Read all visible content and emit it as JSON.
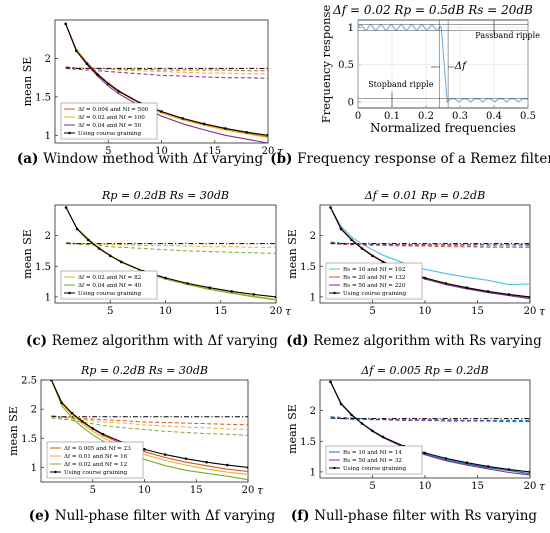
{
  "colors": {
    "purple": "#7e2f8e",
    "orange": "#d95319",
    "yellow": "#edb120",
    "blue": "#0072bd",
    "cyan": "#4dbeee",
    "green": "#77ac30",
    "black": "#000000",
    "remez": "#6ea8dc"
  },
  "captions": [
    {
      "letter": "(a)",
      "text": "Window method with Δf varying"
    },
    {
      "letter": "(b)",
      "text": "Frequency response of a Remez filter"
    },
    {
      "letter": "(c)",
      "text": "Remez algorithm with Δf varying"
    },
    {
      "letter": "(d)",
      "text": "Remez algorithm with Rs varying"
    },
    {
      "letter": "(e)",
      "text": "Null-phase filter with Δf varying"
    },
    {
      "letter": "(f)",
      "text": "Null-phase filter with Rs varying"
    }
  ],
  "chart_data": [
    {
      "id": "a",
      "type": "line",
      "title": "",
      "xlabel": "τ",
      "ylabel": "mean SE",
      "xlim": [
        0,
        20
      ],
      "ylim": [
        0.9,
        2.5
      ],
      "xticks": [
        5,
        10,
        15,
        20
      ],
      "yticks": [
        1,
        1.5,
        2
      ],
      "x": [
        1,
        2,
        3,
        4,
        5,
        6,
        8,
        10,
        12,
        14,
        16,
        18,
        20
      ],
      "series": [
        {
          "name": "Δf = 0.004 and Nf = 500",
          "color": "orange",
          "dash": "solid",
          "values": [
            2.45,
            2.12,
            1.95,
            1.8,
            1.68,
            1.58,
            1.42,
            1.3,
            1.21,
            1.14,
            1.08,
            1.03,
            0.98
          ]
        },
        {
          "name": "Δf = 0.02 and Nf = 100",
          "color": "yellow",
          "dash": "solid",
          "values": [
            2.45,
            2.12,
            1.94,
            1.79,
            1.67,
            1.57,
            1.41,
            1.29,
            1.2,
            1.13,
            1.07,
            1.02,
            0.97
          ]
        },
        {
          "name": "Δf = 0.04 and Nf = 50",
          "color": "purple",
          "dash": "solid",
          "values": [
            2.45,
            2.1,
            1.92,
            1.77,
            1.64,
            1.54,
            1.38,
            1.25,
            1.15,
            1.07,
            1.0,
            0.95,
            0.9
          ]
        },
        {
          "name": "Using course graining",
          "color": "black",
          "dash": "solid",
          "marker": true,
          "values": [
            2.45,
            2.1,
            1.93,
            1.79,
            1.67,
            1.57,
            1.42,
            1.31,
            1.22,
            1.15,
            1.09,
            1.04,
            1.0
          ]
        },
        {
          "color": "orange",
          "dash": "dash",
          "values": [
            1.89,
            1.88,
            1.87,
            1.87,
            1.86,
            1.86,
            1.86,
            1.85,
            1.85,
            1.85,
            1.85,
            1.84,
            1.84
          ]
        },
        {
          "color": "yellow",
          "dash": "dash",
          "values": [
            1.88,
            1.87,
            1.87,
            1.86,
            1.86,
            1.85,
            1.84,
            1.83,
            1.82,
            1.81,
            1.81,
            1.8,
            1.8
          ]
        },
        {
          "color": "purple",
          "dash": "dash",
          "values": [
            1.87,
            1.86,
            1.85,
            1.84,
            1.83,
            1.82,
            1.8,
            1.78,
            1.77,
            1.76,
            1.75,
            1.75,
            1.74
          ]
        },
        {
          "color": "black",
          "dash": "dashdot",
          "values": [
            1.88,
            1.87,
            1.87,
            1.87,
            1.87,
            1.87,
            1.87,
            1.87,
            1.87,
            1.87,
            1.87,
            1.87,
            1.87
          ]
        }
      ]
    },
    {
      "id": "b",
      "type": "line",
      "title": "Δf = 0.02     Rp = 0.5dB     Rs = 20dB",
      "xlabel": "Normalized frequencies",
      "ylabel": "Frequency response",
      "xlim": [
        0,
        0.5
      ],
      "ylim": [
        -0.08,
        1.1
      ],
      "xticks": [
        0,
        0.1,
        0.2,
        0.3,
        0.4,
        0.5
      ],
      "yticks": [
        0,
        0.5,
        1
      ],
      "annotations": [
        "Passband ripple",
        "Stopband ripple",
        "Δf"
      ]
    },
    {
      "id": "c",
      "type": "line",
      "title": "Rp = 0.2dB     Rs = 30dB",
      "xlabel": "τ",
      "ylabel": "mean SE",
      "xlim": [
        0,
        20
      ],
      "ylim": [
        0.9,
        2.5
      ],
      "xticks": [
        5,
        10,
        15,
        20
      ],
      "yticks": [
        1,
        1.5,
        2
      ],
      "x": [
        1,
        2,
        3,
        4,
        5,
        6,
        8,
        10,
        12,
        14,
        16,
        18,
        20
      ],
      "series": [
        {
          "name": "Δf = 0.02 and Nf = 82",
          "color": "yellow",
          "dash": "solid",
          "values": [
            2.46,
            2.12,
            1.95,
            1.8,
            1.68,
            1.58,
            1.42,
            1.3,
            1.21,
            1.13,
            1.07,
            1.01,
            0.96
          ]
        },
        {
          "name": "Δf = 0.04 and Nf = 40",
          "color": "green",
          "dash": "solid",
          "values": [
            2.46,
            2.11,
            1.94,
            1.79,
            1.67,
            1.57,
            1.41,
            1.29,
            1.2,
            1.12,
            1.06,
            1.0,
            0.95
          ]
        },
        {
          "name": "Using course graining",
          "color": "black",
          "dash": "solid",
          "marker": true,
          "values": [
            2.46,
            2.11,
            1.93,
            1.79,
            1.67,
            1.57,
            1.42,
            1.31,
            1.22,
            1.15,
            1.09,
            1.04,
            1.0
          ]
        },
        {
          "color": "yellow",
          "dash": "dash",
          "values": [
            1.88,
            1.87,
            1.87,
            1.86,
            1.86,
            1.85,
            1.84,
            1.84,
            1.83,
            1.82,
            1.82,
            1.81,
            1.81
          ]
        },
        {
          "color": "green",
          "dash": "dash",
          "values": [
            1.87,
            1.86,
            1.85,
            1.84,
            1.82,
            1.81,
            1.79,
            1.77,
            1.75,
            1.74,
            1.73,
            1.72,
            1.71
          ]
        },
        {
          "color": "black",
          "dash": "dashdot",
          "values": [
            1.88,
            1.87,
            1.87,
            1.87,
            1.87,
            1.87,
            1.87,
            1.87,
            1.87,
            1.87,
            1.87,
            1.87,
            1.87
          ]
        }
      ]
    },
    {
      "id": "d",
      "type": "line",
      "title": "Δf = 0.01     Rp = 0.2dB",
      "xlabel": "τ",
      "ylabel": "mean SE",
      "xlim": [
        0,
        20
      ],
      "ylim": [
        0.9,
        2.5
      ],
      "xticks": [
        5,
        10,
        15,
        20
      ],
      "yticks": [
        1,
        1.5,
        2
      ],
      "x": [
        1,
        2,
        3,
        4,
        5,
        6,
        8,
        10,
        12,
        14,
        16,
        18,
        20
      ],
      "series": [
        {
          "name": "Rs = 10 and Nf = 102",
          "color": "cyan",
          "dash": "solid",
          "values": [
            2.46,
            2.15,
            1.98,
            1.86,
            1.77,
            1.68,
            1.55,
            1.45,
            1.38,
            1.32,
            1.27,
            1.2,
            1.21
          ]
        },
        {
          "name": "Rs = 20 and Nf = 132",
          "color": "orange",
          "dash": "solid",
          "values": [
            2.46,
            2.12,
            1.94,
            1.8,
            1.68,
            1.58,
            1.42,
            1.3,
            1.21,
            1.14,
            1.08,
            1.03,
            0.98
          ]
        },
        {
          "name": "Rs = 50 and Nf = 220",
          "color": "purple",
          "dash": "solid",
          "values": [
            2.46,
            2.11,
            1.94,
            1.79,
            1.67,
            1.57,
            1.41,
            1.29,
            1.2,
            1.13,
            1.07,
            1.02,
            0.97
          ]
        },
        {
          "name": "Using course graining",
          "color": "black",
          "dash": "solid",
          "marker": true,
          "values": [
            2.46,
            2.11,
            1.93,
            1.79,
            1.67,
            1.57,
            1.42,
            1.31,
            1.22,
            1.15,
            1.09,
            1.04,
            1.0
          ]
        },
        {
          "color": "cyan",
          "dash": "dash",
          "values": [
            1.9,
            1.88,
            1.87,
            1.86,
            1.85,
            1.85,
            1.84,
            1.84,
            1.84,
            1.83,
            1.83,
            1.83,
            1.83
          ]
        },
        {
          "color": "orange",
          "dash": "dash",
          "values": [
            1.87,
            1.86,
            1.85,
            1.85,
            1.84,
            1.84,
            1.83,
            1.83,
            1.82,
            1.82,
            1.81,
            1.81,
            1.81
          ]
        },
        {
          "color": "purple",
          "dash": "dash",
          "values": [
            1.88,
            1.87,
            1.86,
            1.86,
            1.86,
            1.86,
            1.85,
            1.85,
            1.85,
            1.85,
            1.85,
            1.85,
            1.85
          ]
        },
        {
          "color": "black",
          "dash": "dashdot",
          "values": [
            1.88,
            1.87,
            1.87,
            1.87,
            1.87,
            1.87,
            1.87,
            1.87,
            1.87,
            1.87,
            1.87,
            1.87,
            1.87
          ]
        }
      ]
    },
    {
      "id": "e",
      "type": "line",
      "title": "Rp = 0.2dB     Rs = 30dB",
      "xlabel": "τ",
      "ylabel": "mean SE",
      "xlim": [
        0,
        20
      ],
      "ylim": [
        0.75,
        2.5
      ],
      "xticks": [
        5,
        10,
        15,
        20
      ],
      "yticks": [
        1,
        1.5,
        2,
        2.5
      ],
      "x": [
        1,
        2,
        3,
        4,
        5,
        6,
        8,
        10,
        12,
        14,
        16,
        18,
        20
      ],
      "series": [
        {
          "name": "Δf = 0.005 and Nf = 23",
          "color": "orange",
          "dash": "solid",
          "values": [
            2.5,
            2.12,
            1.93,
            1.78,
            1.66,
            1.55,
            1.39,
            1.27,
            1.17,
            1.09,
            1.03,
            0.97,
            0.93
          ]
        },
        {
          "name": "Δf = 0.01 and Nf = 16",
          "color": "yellow",
          "dash": "solid",
          "values": [
            2.5,
            2.1,
            1.9,
            1.75,
            1.62,
            1.51,
            1.34,
            1.22,
            1.12,
            1.04,
            0.97,
            0.92,
            0.88
          ]
        },
        {
          "name": "Δf = 0.02 and Nf = 12",
          "color": "green",
          "dash": "solid",
          "values": [
            2.5,
            2.06,
            1.85,
            1.69,
            1.56,
            1.45,
            1.27,
            1.14,
            1.03,
            0.95,
            0.9,
            0.85,
            0.79
          ]
        },
        {
          "name": "Using course graining",
          "color": "black",
          "dash": "solid",
          "marker": true,
          "values": [
            2.5,
            2.11,
            1.93,
            1.79,
            1.67,
            1.57,
            1.42,
            1.31,
            1.22,
            1.15,
            1.09,
            1.04,
            1.0
          ]
        },
        {
          "color": "orange",
          "dash": "dash",
          "values": [
            1.87,
            1.86,
            1.85,
            1.84,
            1.83,
            1.82,
            1.8,
            1.78,
            1.77,
            1.76,
            1.75,
            1.74,
            1.73
          ]
        },
        {
          "color": "yellow",
          "dash": "dash",
          "values": [
            1.86,
            1.85,
            1.84,
            1.82,
            1.8,
            1.78,
            1.76,
            1.73,
            1.71,
            1.69,
            1.68,
            1.66,
            1.65
          ]
        },
        {
          "color": "green",
          "dash": "dash",
          "values": [
            1.85,
            1.83,
            1.81,
            1.78,
            1.75,
            1.72,
            1.68,
            1.65,
            1.62,
            1.6,
            1.58,
            1.57,
            1.55
          ]
        },
        {
          "color": "black",
          "dash": "dashdot",
          "values": [
            1.88,
            1.87,
            1.87,
            1.87,
            1.87,
            1.87,
            1.87,
            1.87,
            1.87,
            1.87,
            1.87,
            1.87,
            1.87
          ]
        }
      ]
    },
    {
      "id": "f",
      "type": "line",
      "title": "Δf = 0.005     Rp = 0.2dB",
      "xlabel": "τ",
      "ylabel": "mean SE",
      "xlim": [
        0,
        20
      ],
      "ylim": [
        0.9,
        2.5
      ],
      "xticks": [
        5,
        10,
        15,
        20
      ],
      "yticks": [
        1,
        1.5,
        2
      ],
      "x": [
        1,
        2,
        3,
        4,
        5,
        6,
        8,
        10,
        12,
        14,
        16,
        18,
        20
      ],
      "series": [
        {
          "name": "Rs = 10 and Nf = 14",
          "color": "blue",
          "dash": "solid",
          "values": [
            2.47,
            2.12,
            1.94,
            1.79,
            1.67,
            1.57,
            1.41,
            1.29,
            1.2,
            1.13,
            1.07,
            1.02,
            0.97
          ]
        },
        {
          "name": "Rs = 50 and Nf = 32",
          "color": "purple",
          "dash": "solid",
          "values": [
            2.47,
            2.12,
            1.93,
            1.79,
            1.66,
            1.56,
            1.4,
            1.28,
            1.18,
            1.11,
            1.05,
            0.99,
            0.95
          ]
        },
        {
          "name": "Using course graining",
          "color": "black",
          "dash": "solid",
          "marker": true,
          "values": [
            2.47,
            2.11,
            1.93,
            1.79,
            1.67,
            1.57,
            1.42,
            1.31,
            1.22,
            1.15,
            1.09,
            1.04,
            1.0
          ]
        },
        {
          "color": "blue",
          "dash": "dash",
          "values": [
            1.9,
            1.89,
            1.88,
            1.87,
            1.86,
            1.86,
            1.85,
            1.85,
            1.85,
            1.84,
            1.84,
            1.84,
            1.84
          ]
        },
        {
          "color": "purple",
          "dash": "dash",
          "values": [
            1.88,
            1.87,
            1.86,
            1.86,
            1.85,
            1.85,
            1.84,
            1.84,
            1.83,
            1.83,
            1.83,
            1.82,
            1.82
          ]
        },
        {
          "color": "black",
          "dash": "dashdot",
          "values": [
            1.88,
            1.87,
            1.87,
            1.87,
            1.87,
            1.87,
            1.87,
            1.87,
            1.87,
            1.87,
            1.87,
            1.87,
            1.87
          ]
        }
      ]
    }
  ]
}
